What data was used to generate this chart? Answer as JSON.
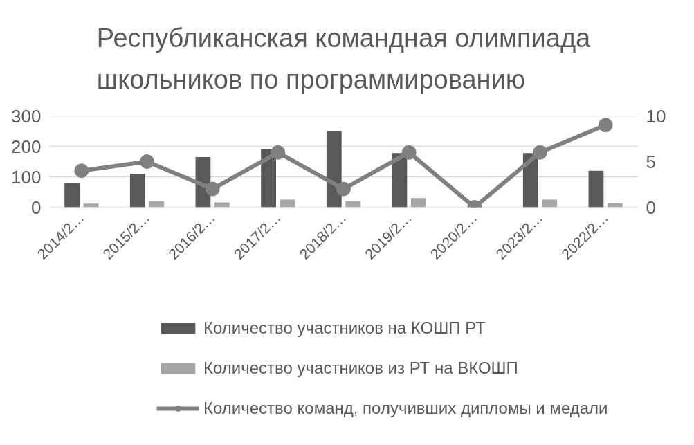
{
  "chart_data": {
    "type": "bar",
    "title": "Республиканская командная олимпиада школьников по программированию",
    "categories": [
      "2014/2…",
      "2015/2…",
      "2016/2…",
      "2017/2…",
      "2018/2…",
      "2019/2…",
      "2020/2…",
      "2023/2…",
      "2022/2…"
    ],
    "series": [
      {
        "name": "Количество участников на КОШП РТ",
        "color": "#595959",
        "values": [
          80,
          110,
          165,
          190,
          250,
          178,
          null,
          178,
          120
        ]
      },
      {
        "name": "Количество участников из РТ на ВКОШП",
        "color": "#a6a6a6",
        "values": [
          12,
          20,
          16,
          25,
          20,
          30,
          null,
          25,
          13
        ]
      },
      {
        "name": "Количество команд, получивших дипломы и медали",
        "type": "line",
        "axis": "y2",
        "color": "#808080",
        "values": [
          4,
          5,
          2,
          6,
          2,
          6,
          0,
          6,
          9
        ]
      }
    ],
    "ylim": [
      0,
      300
    ],
    "yticks": [
      0,
      100,
      200,
      300
    ],
    "y2lim": [
      0,
      10
    ],
    "y2ticks": [
      0,
      5,
      10
    ],
    "grid": "y",
    "legend": "bottom",
    "marker": "circle",
    "line_style": "solid"
  }
}
